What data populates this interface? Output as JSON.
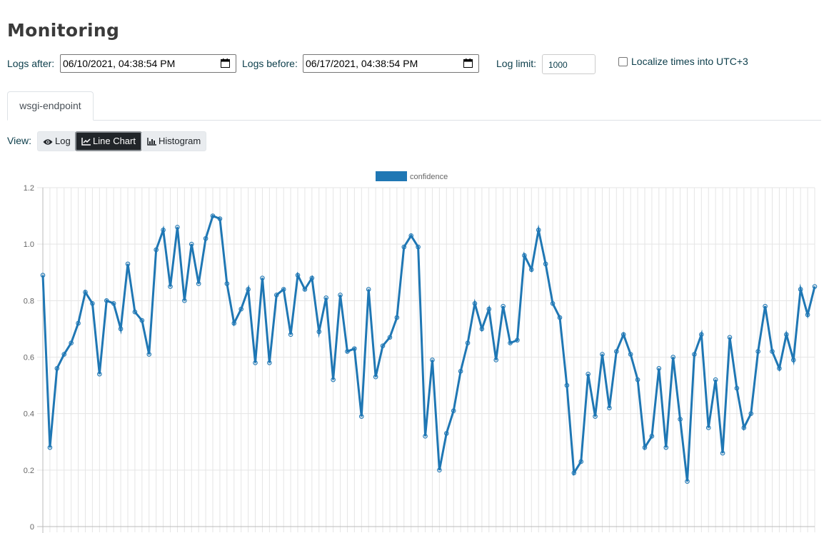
{
  "page": {
    "title": "Monitoring"
  },
  "filters": {
    "logs_after_label": "Logs after:",
    "logs_after_value": "06/10/2021, 04:38:54 PM",
    "logs_before_label": "Logs before:",
    "logs_before_value": "06/17/2021, 04:38:54 PM",
    "log_limit_label": "Log limit:",
    "log_limit_value": "1000",
    "localize_label": "Localize times into UTC+3",
    "localize_checked": false
  },
  "tabs": [
    {
      "label": "wsgi-endpoint",
      "active": true
    }
  ],
  "view": {
    "label": "View:",
    "buttons": [
      {
        "label": "Log",
        "icon": "eye-icon",
        "active": false
      },
      {
        "label": "Line Chart",
        "icon": "line-chart-icon",
        "active": true
      },
      {
        "label": "Histogram",
        "icon": "bar-chart-icon",
        "active": false
      }
    ]
  },
  "colors": {
    "series": "#1f77b4",
    "grid": "#e5e5e5",
    "active_button": "#212529"
  },
  "chart_data": {
    "type": "line",
    "title": "",
    "xlabel": "",
    "ylabel": "",
    "ylim": [
      0,
      1.2
    ],
    "yticks": [
      "0",
      "0.2",
      "0.4",
      "0.6",
      "0.8",
      "1.0",
      "1.2"
    ],
    "grid": true,
    "legend": "top-center",
    "series": [
      {
        "name": "confidence",
        "values": [
          0.89,
          0.28,
          0.56,
          0.61,
          0.65,
          0.72,
          0.83,
          0.79,
          0.54,
          0.8,
          0.79,
          0.7,
          0.93,
          0.76,
          0.73,
          0.61,
          0.98,
          1.05,
          0.85,
          1.06,
          0.8,
          1.0,
          0.86,
          1.02,
          1.1,
          1.09,
          0.86,
          0.72,
          0.77,
          0.84,
          0.58,
          0.88,
          0.58,
          0.82,
          0.84,
          0.68,
          0.89,
          0.84,
          0.88,
          0.69,
          0.81,
          0.52,
          0.82,
          0.62,
          0.63,
          0.39,
          0.84,
          0.53,
          0.64,
          0.67,
          0.74,
          0.99,
          1.03,
          0.99,
          0.32,
          0.59,
          0.2,
          0.33,
          0.41,
          0.55,
          0.65,
          0.79,
          0.7,
          0.77,
          0.59,
          0.78,
          0.65,
          0.66,
          0.96,
          0.91,
          1.05,
          0.93,
          0.79,
          0.74,
          0.5,
          0.19,
          0.23,
          0.54,
          0.39,
          0.61,
          0.42,
          0.62,
          0.68,
          0.61,
          0.52,
          0.28,
          0.32,
          0.56,
          0.28,
          0.6,
          0.38,
          0.16,
          0.61,
          0.68,
          0.35,
          0.52,
          0.26,
          0.67,
          0.49,
          0.35,
          0.4,
          0.62,
          0.78,
          0.62,
          0.56,
          0.68,
          0.59,
          0.84,
          0.75,
          0.85
        ]
      }
    ]
  }
}
